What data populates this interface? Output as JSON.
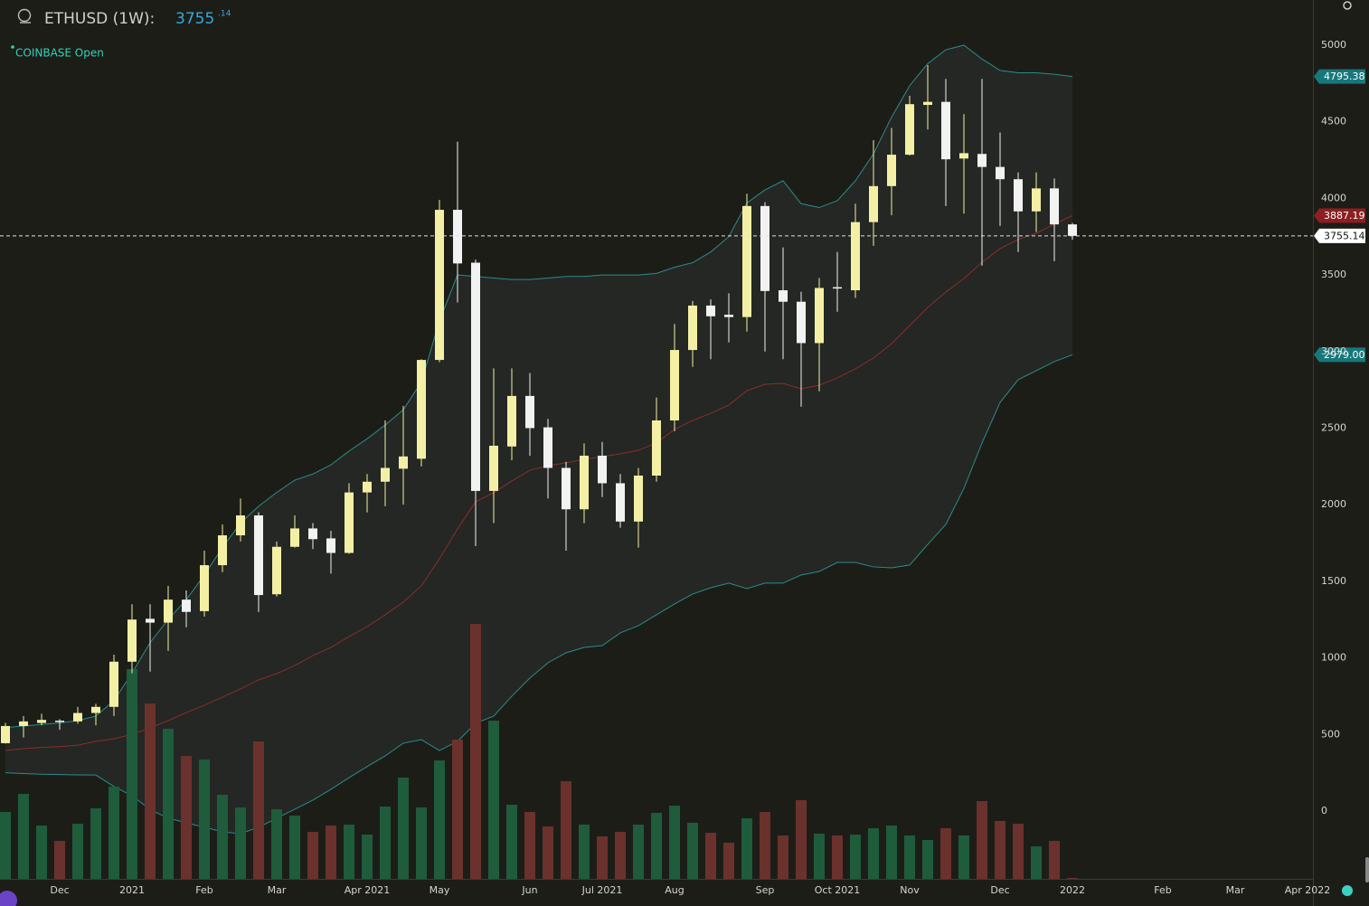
{
  "header": {
    "symbol": "ETHUSD (1W):",
    "price": "3755",
    "price_fraction": ".14",
    "exchange": "COINBASE Open"
  },
  "chart_data": {
    "type": "candlestick",
    "categories": [
      null,
      null,
      null,
      "Dec",
      null,
      null,
      null,
      "2021",
      null,
      null,
      null,
      "Feb",
      null,
      null,
      null,
      "Mar",
      null,
      null,
      null,
      null,
      "Apr 2021",
      null,
      null,
      null,
      "May",
      null,
      null,
      null,
      null,
      "Jun",
      null,
      null,
      null,
      "Jul 2021",
      null,
      null,
      null,
      "Aug",
      null,
      null,
      null,
      null,
      "Sep",
      null,
      null,
      null,
      "Oct 2021",
      null,
      null,
      null,
      "Nov",
      null,
      null,
      null,
      null,
      "Dec",
      null,
      null,
      null,
      "2022",
      null,
      null,
      null,
      null,
      "Feb",
      null,
      null,
      null,
      "Mar",
      null,
      null,
      null,
      "Apr 2022"
    ],
    "open": [
      443,
      555,
      575,
      590,
      585,
      640,
      680,
      975,
      1255,
      1230,
      1380,
      1305,
      1605,
      1800,
      1930,
      1415,
      1725,
      1845,
      1780,
      1685,
      2080,
      2150,
      2235,
      2300,
      2945,
      3925,
      3580,
      2090,
      2380,
      2710,
      2505,
      2240,
      1970,
      2320,
      2140,
      1890,
      2190,
      2550,
      3010,
      3300,
      3240,
      3225,
      3950,
      3400,
      3325,
      3055,
      3420,
      3400,
      3845,
      4080,
      4285,
      4610,
      4630,
      4260,
      4290,
      4205,
      4125,
      3915,
      4065,
      3830,
      null,
      null,
      null,
      null,
      null,
      null,
      null,
      null,
      null,
      null,
      null,
      null,
      null
    ],
    "high": [
      575,
      620,
      635,
      600,
      680,
      700,
      1020,
      1350,
      1350,
      1470,
      1440,
      1700,
      1870,
      2040,
      1950,
      1760,
      1930,
      1880,
      1830,
      2140,
      2200,
      2550,
      2645,
      2950,
      3990,
      4370,
      3600,
      2890,
      2890,
      2860,
      2560,
      2280,
      2400,
      2410,
      2200,
      2240,
      2700,
      3180,
      3330,
      3340,
      3380,
      4030,
      3975,
      3680,
      3390,
      3480,
      3650,
      3965,
      4380,
      4460,
      4670,
      4870,
      4780,
      4550,
      4780,
      4430,
      4170,
      4170,
      4130,
      3840,
      null,
      null,
      null,
      null,
      null,
      null,
      null,
      null,
      null,
      null,
      null,
      null,
      null
    ],
    "low": [
      440,
      480,
      560,
      530,
      570,
      560,
      620,
      900,
      910,
      1045,
      1200,
      1270,
      1560,
      1760,
      1300,
      1400,
      1720,
      1710,
      1550,
      1680,
      1950,
      1990,
      2000,
      2250,
      2930,
      3320,
      1730,
      1880,
      2290,
      2320,
      2040,
      1700,
      1880,
      2050,
      1850,
      1720,
      2150,
      2480,
      2900,
      2950,
      3060,
      3130,
      3000,
      2950,
      2640,
      2740,
      3260,
      3350,
      3690,
      3890,
      4280,
      4450,
      3950,
      3900,
      3560,
      3820,
      3650,
      3780,
      3590,
      3730,
      null,
      null,
      null,
      null,
      null,
      null,
      null,
      null,
      null,
      null,
      null,
      null,
      null
    ],
    "close": [
      555,
      585,
      595,
      585,
      640,
      680,
      975,
      1250,
      1230,
      1380,
      1300,
      1605,
      1800,
      1930,
      1410,
      1725,
      1845,
      1775,
      1685,
      2080,
      2150,
      2240,
      2315,
      2945,
      3925,
      3575,
      2090,
      2385,
      2710,
      2500,
      2240,
      1970,
      2320,
      2140,
      1890,
      2190,
      2550,
      3010,
      3300,
      3230,
      3225,
      3950,
      3395,
      3325,
      3055,
      3415,
      3415,
      3845,
      4080,
      4285,
      4615,
      4630,
      4255,
      4295,
      4205,
      4125,
      3915,
      4065,
      3830,
      3755.14,
      null,
      null,
      null,
      null,
      null,
      null,
      null,
      null,
      null,
      null,
      null,
      null,
      null
    ],
    "volume": [
      74,
      94,
      59,
      42,
      61,
      78,
      102,
      232,
      194,
      166,
      136,
      132,
      93,
      79,
      152,
      77,
      70,
      52,
      59,
      60,
      49,
      80,
      112,
      79,
      131,
      154,
      282,
      175,
      82,
      74,
      58,
      108,
      60,
      47,
      52,
      60,
      73,
      81,
      62,
      51,
      40,
      67,
      74,
      48,
      87,
      50,
      48,
      49,
      56,
      59,
      48,
      43,
      56,
      48,
      86,
      64,
      61,
      36,
      42,
      1,
      null,
      null,
      null,
      null,
      null,
      null,
      null,
      null,
      null,
      null,
      null,
      null,
      null
    ],
    "upper_band": [
      545,
      555,
      565,
      575,
      590,
      620,
      720,
      900,
      1100,
      1250,
      1380,
      1540,
      1720,
      1880,
      1990,
      2080,
      2160,
      2200,
      2260,
      2350,
      2430,
      2520,
      2620,
      2800,
      3200,
      3500,
      3490,
      3480,
      3470,
      3470,
      3480,
      3490,
      3490,
      3500,
      3500,
      3500,
      3510,
      3550,
      3580,
      3650,
      3750,
      3970,
      4055,
      4115,
      3965,
      3940,
      3985,
      4115,
      4290,
      4530,
      4735,
      4880,
      4970,
      5000,
      4910,
      4835,
      4820,
      4820,
      4810,
      4795.38,
      null,
      null,
      null,
      null,
      null,
      null,
      null,
      null,
      null,
      null,
      null,
      null,
      null
    ],
    "basis": [
      395,
      407,
      415,
      420,
      430,
      455,
      472,
      500,
      543,
      590,
      643,
      690,
      744,
      797,
      856,
      897,
      950,
      1015,
      1068,
      1139,
      1204,
      1281,
      1364,
      1470,
      1647,
      1842,
      2019,
      2078,
      2155,
      2225,
      2255,
      2273,
      2296,
      2314,
      2332,
      2355,
      2403,
      2491,
      2550,
      2597,
      2650,
      2745,
      2786,
      2792,
      2757,
      2780,
      2828,
      2887,
      2958,
      3052,
      3170,
      3288,
      3388,
      3477,
      3583,
      3672,
      3731,
      3772,
      3831,
      3887.19,
      null,
      null,
      null,
      null,
      null,
      null,
      null,
      null,
      null,
      null,
      null,
      null,
      null
    ],
    "lower_band": [
      250,
      245,
      240,
      238,
      236,
      235,
      160,
      100,
      10,
      -47,
      -77,
      -106,
      -136,
      -148,
      -106,
      -47,
      12,
      71,
      142,
      218,
      290,
      360,
      443,
      466,
      395,
      455,
      573,
      620,
      750,
      868,
      968,
      1033,
      1068,
      1080,
      1163,
      1210,
      1281,
      1352,
      1417,
      1458,
      1488,
      1452,
      1488,
      1488,
      1541,
      1564,
      1623,
      1623,
      1594,
      1588,
      1606,
      1741,
      1871,
      2107,
      2403,
      2668,
      2816,
      2875,
      2934,
      2979,
      null,
      null,
      null,
      null,
      null,
      null,
      null,
      null,
      null,
      null,
      null,
      null,
      null
    ],
    "up_color": "#f3f0a6",
    "down_color": "#f2f2f2",
    "volume_up_color": "#1e5c3c",
    "volume_down_color": "#6b312c",
    "band_color": "#2b8c8c",
    "basis_color": "#8a2e2e",
    "price_labels": [
      {
        "value": 4795.38,
        "color": "#17787c",
        "text_color": "#ffffff"
      },
      {
        "value": 3887.19,
        "color": "#8c1f22",
        "text_color": "#ffffff"
      },
      {
        "value": 3755.14,
        "color": "#ffffff",
        "text_color": "#111111"
      },
      {
        "value": 2979,
        "label": "2979.00",
        "color": "#17787c",
        "text_color": "#ffffff"
      }
    ],
    "ylim": [
      -443,
      5295
    ],
    "yticks": [
      0,
      500,
      1000,
      1500,
      2000,
      2500,
      3000,
      3500,
      4000,
      4500,
      5000
    ]
  }
}
